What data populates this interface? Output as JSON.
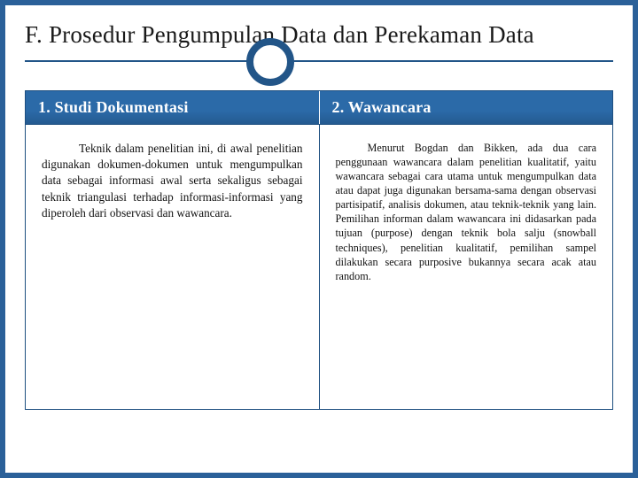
{
  "colors": {
    "page_bg": "#2a6099",
    "slide_bg": "#ffffff",
    "rule": "#225588",
    "header_bg_top": "#2b6aa8",
    "header_bg_bottom": "#245a90",
    "header_border": "#1e4f80",
    "header_text": "#ffffff",
    "body_text": "#111111",
    "title_text": "#1a1a1a"
  },
  "typography": {
    "title_fontsize_pt": 20,
    "header_fontsize_pt": 14,
    "left_body_fontsize_pt": 10,
    "right_body_fontsize_pt": 9,
    "font_family": "Georgia, serif"
  },
  "title": "F. Prosedur Pengumpulan Data dan Perekaman Data",
  "columns": [
    {
      "header": "1. Studi Dokumentasi",
      "body": "Teknik dalam penelitian ini, di awal penelitian digunakan dokumen-dokumen untuk mengumpulkan data sebagai informasi awal serta sekaligus sebagai teknik triangulasi terhadap informasi-informasi yang diperoleh dari observasi dan wawancara."
    },
    {
      "header": "2. Wawancara",
      "body": "Menurut Bogdan dan Bikken, ada dua cara penggunaan wawancara dalam penelitian kualitatif, yaitu wawancara sebagai cara utama untuk mengumpulkan data atau dapat juga digunakan bersama-sama dengan observasi partisipatif, analisis dokumen, atau teknik-teknik yang lain. Pemilihan informan dalam wawancara ini didasarkan pada tujuan (purpose) dengan teknik bola salju (snowball techniques), penelitian kualitatif, pemilihan sampel dilakukan secara purposive bukannya secara acak atau random."
    }
  ]
}
